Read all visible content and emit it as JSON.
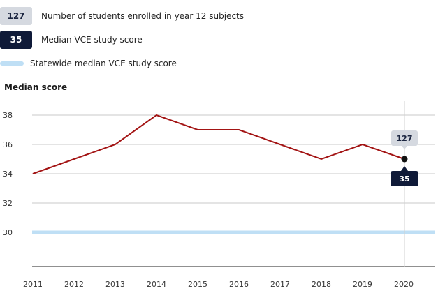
{
  "legend": {
    "enrolled_value": "127",
    "enrolled_label": "Number of students enrolled in year 12 subjects",
    "median_value": "35",
    "median_label": "Median VCE study score",
    "statewide_label": "Statewide median VCE study score"
  },
  "colors": {
    "median_line": "#a31414",
    "statewide_line": "#bfdff5",
    "tooltip_light": "#d5d9e0",
    "tooltip_dark": "#0f1a38"
  },
  "chart_data": {
    "type": "line",
    "ylabel": "Median score",
    "categories": [
      "2011",
      "2012",
      "2013",
      "2014",
      "2015",
      "2016",
      "2017",
      "2018",
      "2019",
      "2020"
    ],
    "series": [
      {
        "name": "Median VCE study score",
        "values": [
          34,
          35,
          36,
          38,
          37,
          37,
          36,
          35,
          36,
          35
        ]
      },
      {
        "name": "Statewide median VCE study score",
        "values": [
          30,
          30,
          30,
          30,
          30,
          30,
          30,
          30,
          30,
          30
        ]
      }
    ],
    "yticks": [
      "30",
      "32",
      "34",
      "36",
      "38"
    ],
    "ylim": [
      28,
      39
    ],
    "grid": true,
    "highlight": {
      "category": "2020",
      "enrolled": "127",
      "median": "35"
    }
  }
}
